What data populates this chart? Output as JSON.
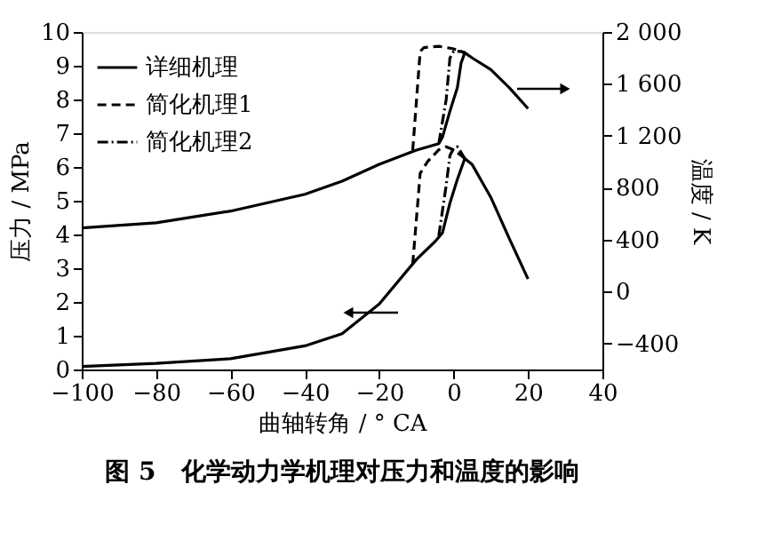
{
  "chart_data": {
    "type": "line",
    "title": "图 5　化学动力学机理对压力和温度的影响",
    "xlabel": "曲轴转角 / ° CA",
    "ylabel": "压力 / MPa",
    "y2label": "温度 / K",
    "xlim": [
      -100,
      40
    ],
    "xticks": [
      -100,
      -80,
      -60,
      -40,
      -20,
      0,
      20,
      40
    ],
    "ylim": [
      0,
      10
    ],
    "yticks": [
      0,
      1,
      2,
      3,
      4,
      5,
      6,
      7,
      8,
      9,
      10
    ],
    "y2lim": [
      -600,
      2000
    ],
    "y2ticks": [
      {
        "value": -400,
        "label": "−400"
      },
      0,
      400,
      800,
      {
        "value": 1200,
        "label": "1 200"
      },
      {
        "value": 1600,
        "label": "1 600"
      },
      {
        "value": 2000,
        "label": "2 000"
      }
    ],
    "grid": false,
    "legend": "top left",
    "marker": "none",
    "series": [
      {
        "name": "详细机理",
        "color": "#000000",
        "line_style": "solid",
        "x": [
          -100,
          -80,
          -60,
          -40,
          -30,
          -20,
          -10,
          -5,
          -3,
          -1,
          1,
          3,
          5,
          10,
          15,
          20
        ],
        "values": [
          0.09,
          0.18,
          0.32,
          0.7,
          1.06,
          1.94,
          3.26,
          3.79,
          4.05,
          4.93,
          5.63,
          6.25,
          6.07,
          5.1,
          3.87,
          2.68
        ]
      },
      {
        "name": "简化机理1",
        "color": "#000000",
        "line_style": "dashed",
        "x": [
          -11,
          -9,
          -7,
          -4,
          -2,
          0,
          2,
          3
        ],
        "values": [
          3.13,
          5.81,
          6.16,
          6.51,
          6.6,
          6.51,
          6.34,
          6.25
        ]
      },
      {
        "name": "简化机理2",
        "color": "#000000",
        "line_style": "dashdot",
        "x": [
          -4,
          -2,
          -1,
          0,
          1,
          2,
          3
        ],
        "values": [
          3.96,
          5.46,
          6.34,
          6.55,
          6.6,
          6.43,
          6.25
        ]
      },
      {
        "color": "#000000",
        "line_style": "solid",
        "axis": "y2",
        "x": [
          -100,
          -80,
          -60,
          -40,
          -30,
          -20,
          -10,
          -4,
          -3,
          -1,
          1,
          2,
          3,
          5,
          10,
          15,
          20
        ],
        "values": [
          490,
          530,
          620,
          750,
          850,
          980,
          1090,
          1140,
          1190,
          1390,
          1570,
          1760,
          1840,
          1800,
          1710,
          1570,
          1410
        ]
      },
      {
        "color": "#000000",
        "line_style": "dashed",
        "axis": "y2",
        "x": [
          -11,
          -9,
          -8,
          -4,
          0,
          2,
          3
        ],
        "values": [
          1090,
          1850,
          1880,
          1890,
          1870,
          1850,
          1840
        ]
      },
      {
        "color": "#000000",
        "line_style": "dashdot",
        "axis": "y2",
        "x": [
          -4,
          -2,
          -1,
          0,
          2,
          3
        ],
        "values": [
          1140,
          1480,
          1800,
          1850,
          1850,
          1840
        ]
      }
    ]
  }
}
